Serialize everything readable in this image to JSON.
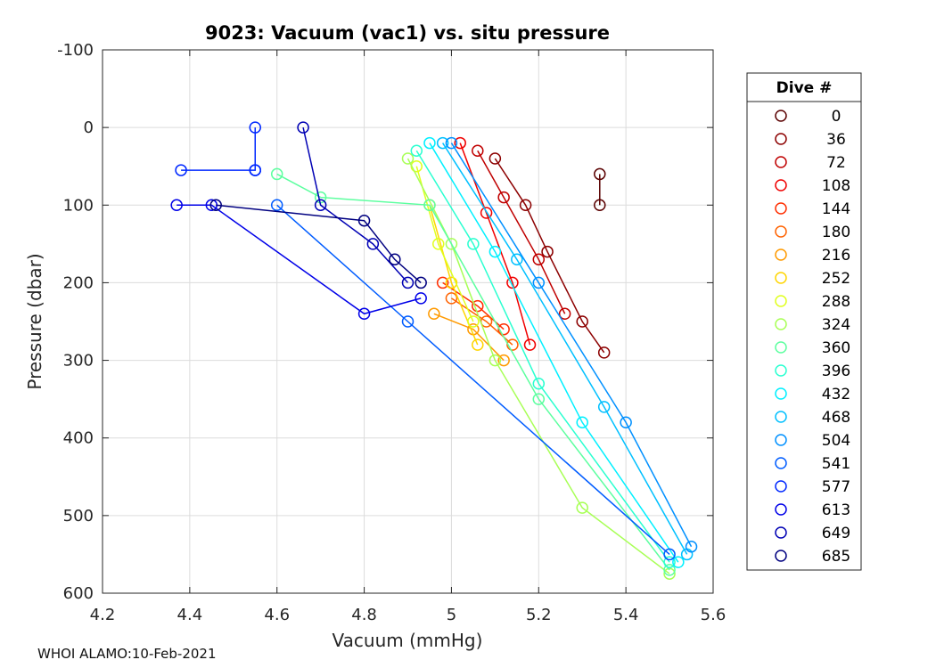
{
  "chart_data": {
    "type": "scatter",
    "title": "9023: Vacuum (vac1) vs. situ pressure",
    "xlabel": "Vacuum (mmHg)",
    "ylabel": "Pressure (dbar)",
    "xlim": [
      4.2,
      5.6
    ],
    "ylim": [
      -100,
      600
    ],
    "y_reversed": true,
    "grid": true,
    "xticks": [
      4.2,
      4.4,
      4.6,
      4.8,
      5.0,
      5.2,
      5.4,
      5.6
    ],
    "xtick_labels": [
      "4.2",
      "4.4",
      "4.6",
      "4.8",
      "5",
      "5.2",
      "5.4",
      "5.6"
    ],
    "yticks": [
      -100,
      0,
      100,
      200,
      300,
      400,
      500,
      600
    ],
    "ytick_labels": [
      "-100",
      "0",
      "100",
      "200",
      "300",
      "400",
      "500",
      "600"
    ],
    "legend_title": "Dive #",
    "legend_position": "outside-right",
    "series": [
      {
        "name": "0",
        "color": "#5a0000",
        "points": [
          [
            5.34,
            60
          ],
          [
            5.34,
            100
          ]
        ]
      },
      {
        "name": "36",
        "color": "#8c0000",
        "points": [
          [
            5.1,
            40
          ],
          [
            5.17,
            100
          ],
          [
            5.22,
            160
          ],
          [
            5.3,
            250
          ],
          [
            5.35,
            290
          ]
        ]
      },
      {
        "name": "72",
        "color": "#c00000",
        "points": [
          [
            5.06,
            30
          ],
          [
            5.12,
            90
          ],
          [
            5.2,
            170
          ],
          [
            5.26,
            240
          ]
        ]
      },
      {
        "name": "108",
        "color": "#f00000",
        "points": [
          [
            5.02,
            20
          ],
          [
            5.08,
            110
          ],
          [
            5.14,
            200
          ],
          [
            5.18,
            280
          ]
        ]
      },
      {
        "name": "144",
        "color": "#ff2e00",
        "points": [
          [
            4.98,
            200
          ],
          [
            5.06,
            230
          ],
          [
            5.12,
            260
          ]
        ]
      },
      {
        "name": "180",
        "color": "#ff6200",
        "points": [
          [
            5.0,
            220
          ],
          [
            5.08,
            250
          ],
          [
            5.14,
            280
          ]
        ]
      },
      {
        "name": "216",
        "color": "#ff9a00",
        "points": [
          [
            4.96,
            240
          ],
          [
            5.05,
            260
          ],
          [
            5.12,
            300
          ]
        ]
      },
      {
        "name": "252",
        "color": "#ffd500",
        "points": [
          [
            4.95,
            100
          ],
          [
            5.0,
            200
          ],
          [
            5.06,
            280
          ]
        ]
      },
      {
        "name": "288",
        "color": "#e0ff1e",
        "points": [
          [
            4.92,
            50
          ],
          [
            4.97,
            150
          ],
          [
            5.05,
            250
          ]
        ]
      },
      {
        "name": "324",
        "color": "#a8ff56",
        "points": [
          [
            4.9,
            40
          ],
          [
            5.0,
            150
          ],
          [
            5.1,
            300
          ],
          [
            5.3,
            490
          ],
          [
            5.5,
            575
          ]
        ]
      },
      {
        "name": "360",
        "color": "#5cff9f",
        "points": [
          [
            4.6,
            60
          ],
          [
            4.7,
            90
          ],
          [
            4.95,
            100
          ],
          [
            5.2,
            350
          ],
          [
            5.5,
            570
          ]
        ]
      },
      {
        "name": "396",
        "color": "#2affd0",
        "points": [
          [
            4.92,
            30
          ],
          [
            5.05,
            150
          ],
          [
            5.2,
            330
          ],
          [
            5.5,
            560
          ]
        ]
      },
      {
        "name": "432",
        "color": "#00f0ff",
        "points": [
          [
            4.95,
            20
          ],
          [
            5.1,
            160
          ],
          [
            5.3,
            380
          ],
          [
            5.52,
            560
          ]
        ]
      },
      {
        "name": "468",
        "color": "#00c0ff",
        "points": [
          [
            4.98,
            20
          ],
          [
            5.15,
            170
          ],
          [
            5.35,
            360
          ],
          [
            5.54,
            550
          ]
        ]
      },
      {
        "name": "504",
        "color": "#0090ff",
        "points": [
          [
            5.0,
            20
          ],
          [
            5.2,
            200
          ],
          [
            5.4,
            380
          ],
          [
            5.55,
            540
          ]
        ]
      },
      {
        "name": "541",
        "color": "#005cff",
        "points": [
          [
            4.6,
            100
          ],
          [
            4.9,
            250
          ],
          [
            5.5,
            550
          ]
        ]
      },
      {
        "name": "577",
        "color": "#0028ff",
        "points": [
          [
            4.38,
            55
          ],
          [
            4.55,
            55
          ],
          [
            4.55,
            0
          ],
          [
            4.55,
            55
          ]
        ]
      },
      {
        "name": "613",
        "color": "#0000e8",
        "points": [
          [
            4.37,
            100
          ],
          [
            4.45,
            100
          ],
          [
            4.8,
            240
          ],
          [
            4.93,
            220
          ]
        ]
      },
      {
        "name": "649",
        "color": "#0000b4",
        "points": [
          [
            4.66,
            0
          ],
          [
            4.7,
            100
          ],
          [
            4.82,
            150
          ],
          [
            4.9,
            200
          ]
        ]
      },
      {
        "name": "685",
        "color": "#000080",
        "points": [
          [
            4.46,
            100
          ],
          [
            4.8,
            120
          ],
          [
            4.87,
            170
          ],
          [
            4.93,
            200
          ]
        ]
      }
    ]
  },
  "footer_text": "WHOI ALAMO:10-Feb-2021"
}
